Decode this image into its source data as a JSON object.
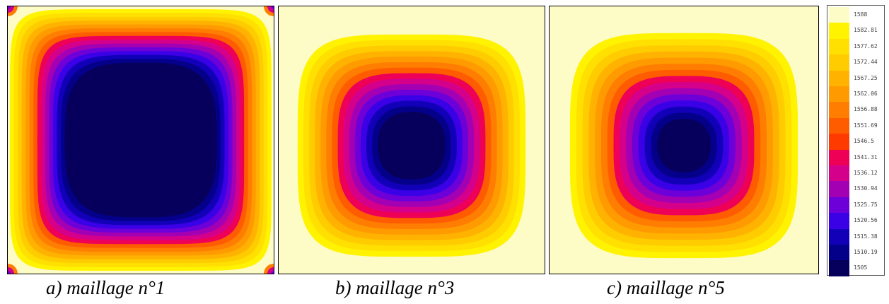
{
  "captions": {
    "a": "a) maillage n°1",
    "b": "b) maillage n°3",
    "c": "c) maillage n°5"
  },
  "legend": {
    "labels": [
      "1588",
      "1582.81",
      "1577.62",
      "1572.44",
      "1567.25",
      "1562.06",
      "1556.88",
      "1551.69",
      "1546.5",
      "1541.31",
      "1536.12",
      "1530.94",
      "1525.75",
      "1520.56",
      "1515.38",
      "1510.19",
      "1505"
    ],
    "colors": [
      "#fdfbc6",
      "#fff300",
      "#ffe000",
      "#ffcc00",
      "#ffb200",
      "#ff9b00",
      "#ff7d00",
      "#ff5c00",
      "#ff3a00",
      "#ee0057",
      "#d4008c",
      "#a300b3",
      "#6d00d8",
      "#3a00e6",
      "#1200b8",
      "#05008a",
      "#06005c"
    ]
  },
  "panels": [
    {
      "id": "a",
      "background": "#fdfbc6",
      "bands": [
        "#fff300",
        "#ffe000",
        "#ffcc00",
        "#ffb200",
        "#ff9b00",
        "#ff7d00",
        "#ff5c00",
        "#ee0057",
        "#d4008c",
        "#a300b3",
        "#6d00d8",
        "#3a00e6",
        "#1200b8",
        "#05008a",
        "#06005c"
      ]
    },
    {
      "id": "b",
      "background": "#fdfbc6",
      "bands": [
        "#fff300",
        "#ffe000",
        "#ffcc00",
        "#ffb200",
        "#ff9b00",
        "#ff7d00",
        "#ff5c00",
        "#ee0057",
        "#d4008c",
        "#a300b3",
        "#6d00d8",
        "#3a00e6",
        "#1200b8",
        "#05008a",
        "#06005c"
      ]
    },
    {
      "id": "c",
      "background": "#fdfbc6",
      "bands": [
        "#fff300",
        "#ffe000",
        "#ffcc00",
        "#ffb200",
        "#ff9b00",
        "#ff7d00",
        "#ff5c00",
        "#ee0057",
        "#d4008c",
        "#a300b3",
        "#6d00d8",
        "#3a00e6",
        "#1200b8",
        "#05008a",
        "#06005c"
      ]
    }
  ]
}
